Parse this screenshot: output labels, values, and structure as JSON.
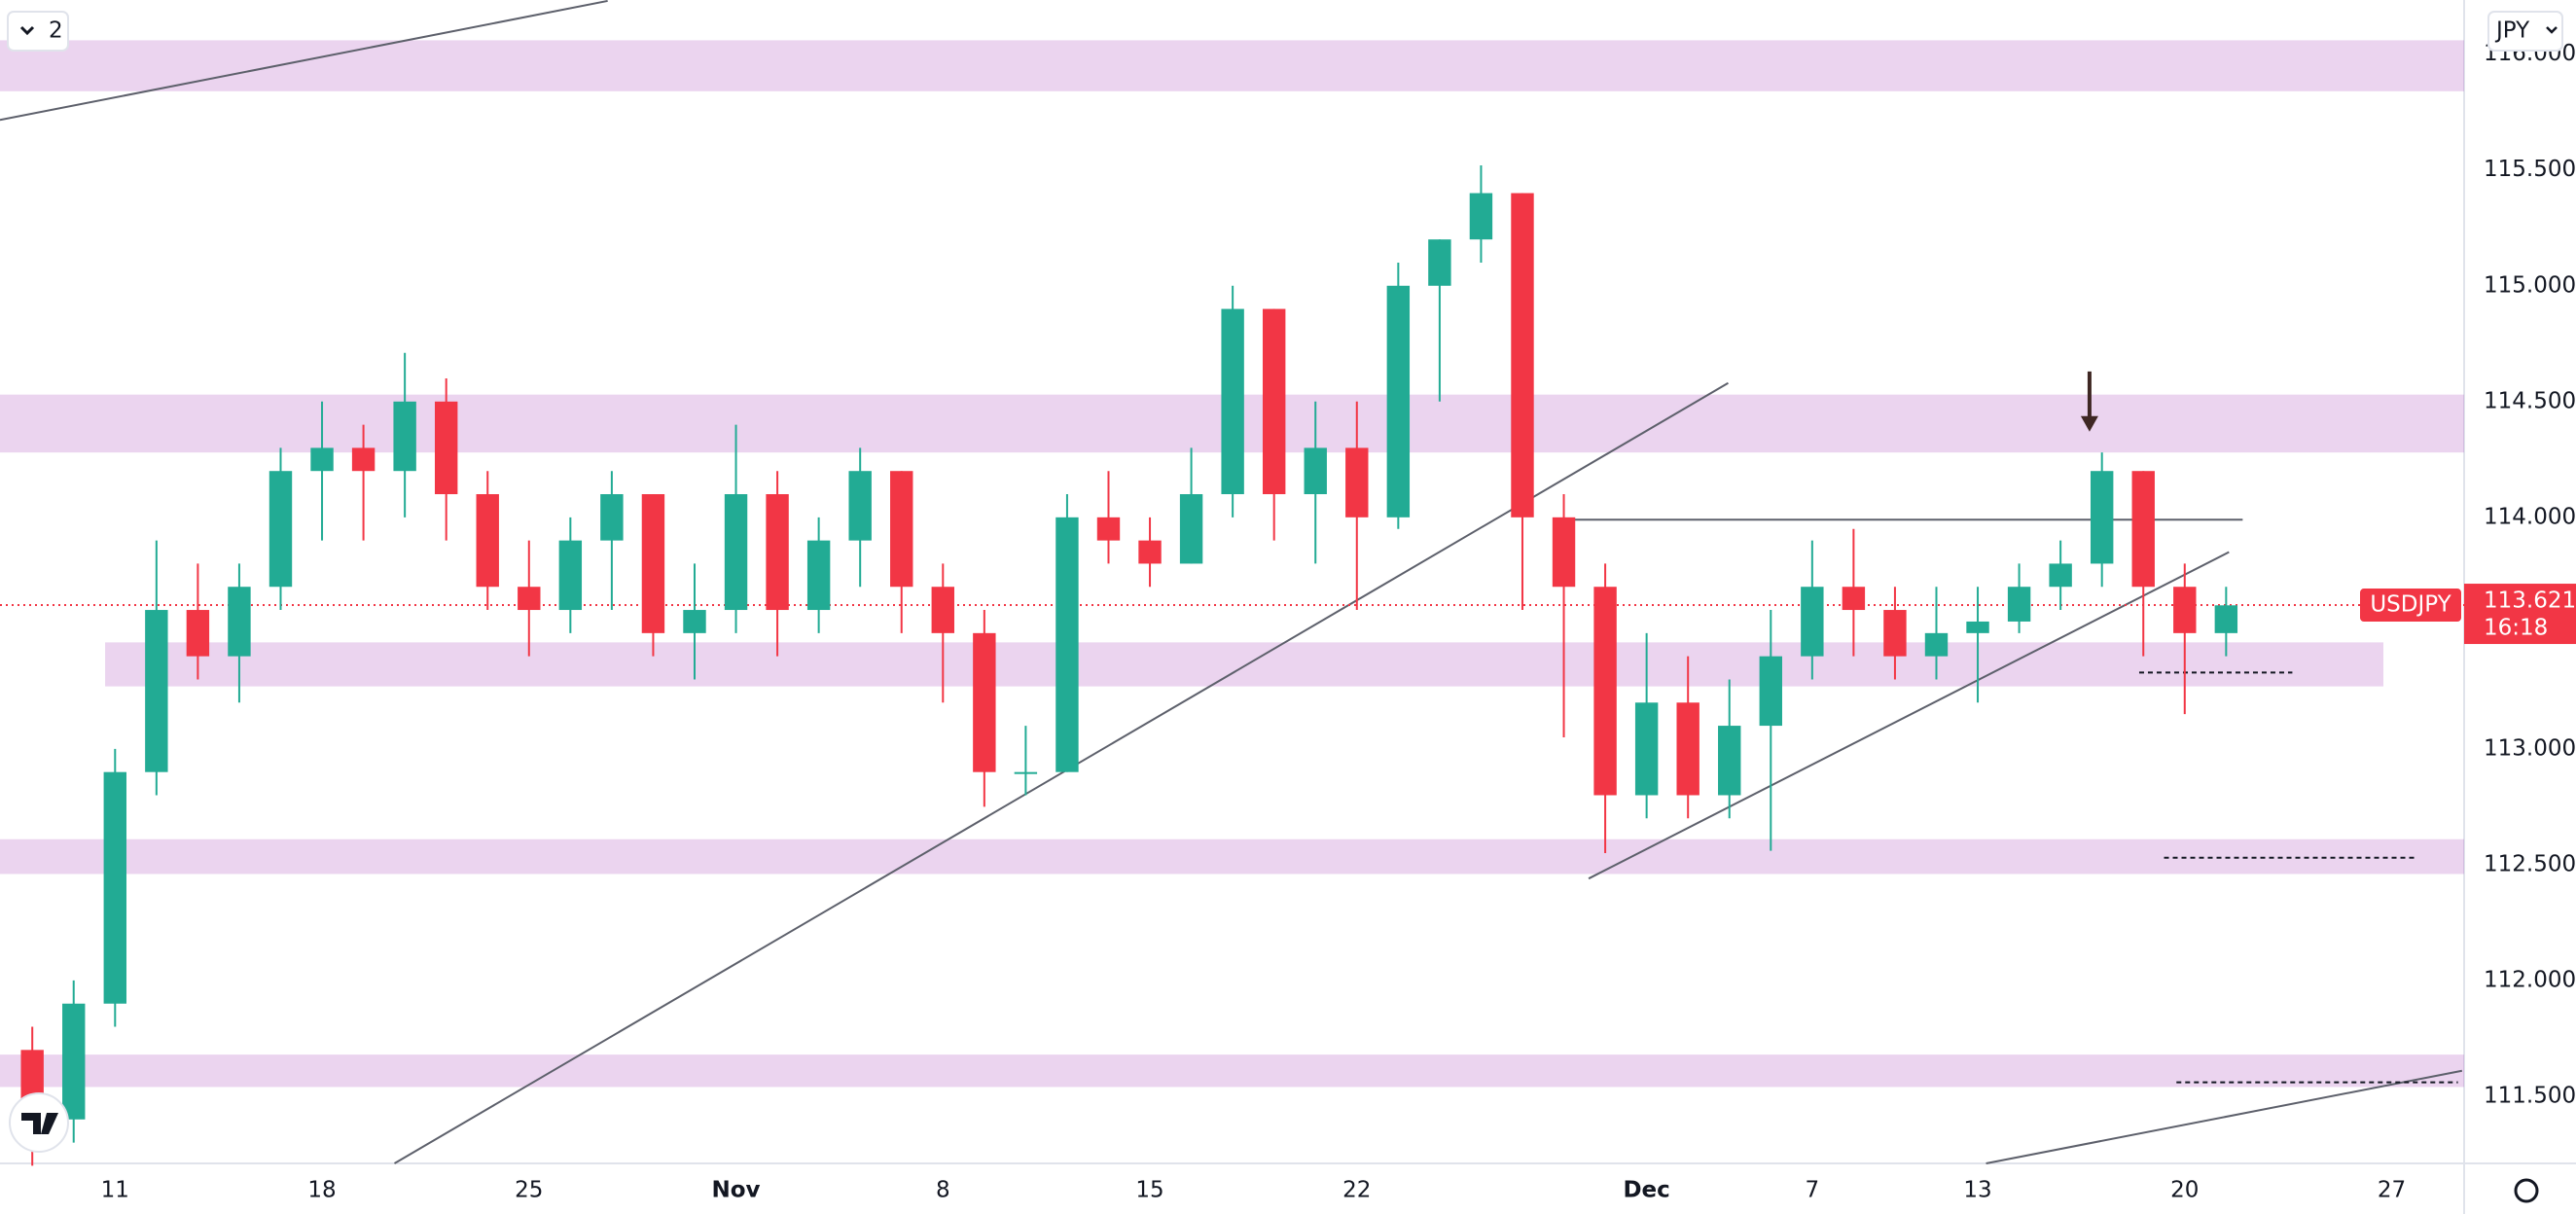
{
  "chart_data": {
    "type": "candlestick",
    "symbol": "USDJPY",
    "currency": "JPY",
    "pane_count": 2,
    "last_price": 113.621,
    "countdown": "16:18",
    "xlim": [
      -2.78,
      56.75
    ],
    "ylim": [
      111.21,
      116.234
    ],
    "xticks": [
      {
        "value": 0,
        "label": "11"
      },
      {
        "value": 5,
        "label": "18"
      },
      {
        "value": 10,
        "label": "25"
      },
      {
        "value": 15,
        "label": "Nov"
      },
      {
        "value": 20,
        "label": "8"
      },
      {
        "value": 25,
        "label": "15"
      },
      {
        "value": 30,
        "label": "22"
      },
      {
        "value": 37,
        "label": "Dec"
      },
      {
        "value": 41,
        "label": "7"
      },
      {
        "value": 45,
        "label": "13"
      },
      {
        "value": 50,
        "label": "20"
      },
      {
        "value": 55,
        "label": "27"
      }
    ],
    "yticks": [
      {
        "value": 111.5,
        "label": "111.500"
      },
      {
        "value": 112,
        "label": "112.000"
      },
      {
        "value": 112.5,
        "label": "112.500"
      },
      {
        "value": 113,
        "label": "113.000"
      },
      {
        "value": 113.5,
        "label": "113.500"
      },
      {
        "value": 114,
        "label": "114.000"
      },
      {
        "value": 114.5,
        "label": "114.500"
      },
      {
        "value": 115,
        "label": "115.000"
      },
      {
        "value": 115.5,
        "label": "115.500"
      },
      {
        "value": 116,
        "label": "116.000"
      }
    ],
    "grid": true,
    "up_color": "#22ab94",
    "down_color": "#f23645",
    "x": [
      -2,
      -1,
      0,
      1,
      2,
      3,
      4,
      5,
      6,
      7,
      8,
      9,
      10,
      11,
      12,
      13,
      14,
      15,
      16,
      17,
      18,
      19,
      20,
      21,
      22,
      23,
      24,
      25,
      26,
      27,
      28,
      29,
      30,
      31,
      32,
      33,
      34,
      35,
      36,
      37,
      38,
      39,
      40,
      41,
      42,
      43,
      44,
      45,
      46,
      47,
      48,
      49,
      50,
      51
    ],
    "open": [
      111.7,
      111.4,
      111.9,
      112.9,
      113.6,
      113.4,
      113.7,
      114.2,
      114.3,
      114.2,
      114.5,
      114.1,
      113.7,
      113.6,
      113.9,
      114.1,
      113.5,
      113.6,
      114.1,
      113.6,
      113.9,
      114.2,
      113.7,
      113.5,
      112.9,
      112.9,
      114.0,
      113.9,
      113.8,
      114.1,
      114.9,
      114.1,
      114.3,
      114.0,
      115.0,
      115.2,
      115.4,
      114.0,
      113.7,
      112.8,
      113.2,
      112.8,
      113.1,
      113.4,
      113.7,
      113.6,
      113.4,
      113.5,
      113.55,
      113.7,
      113.8,
      114.2,
      113.7,
      113.5
    ],
    "high": [
      111.8,
      112.0,
      113.0,
      113.9,
      113.8,
      113.8,
      114.3,
      114.5,
      114.4,
      114.71,
      114.6,
      114.2,
      113.9,
      114.0,
      114.2,
      114.1,
      113.8,
      114.4,
      114.2,
      114.0,
      114.3,
      114.2,
      113.8,
      113.6,
      113.1,
      114.1,
      114.2,
      114.0,
      114.3,
      115.0,
      114.9,
      114.5,
      114.5,
      115.1,
      115.2,
      115.52,
      115.4,
      114.1,
      113.8,
      113.5,
      113.4,
      113.3,
      113.6,
      113.9,
      113.95,
      113.7,
      113.7,
      113.7,
      113.8,
      113.9,
      114.28,
      114.2,
      113.8,
      113.7
    ],
    "low": [
      111.2,
      111.3,
      111.8,
      112.8,
      113.3,
      113.2,
      113.6,
      113.9,
      113.9,
      114.0,
      113.9,
      113.6,
      113.4,
      113.5,
      113.6,
      113.4,
      113.3,
      113.5,
      113.4,
      113.5,
      113.7,
      113.5,
      113.2,
      112.75,
      112.8,
      112.9,
      113.8,
      113.7,
      113.8,
      114.0,
      113.9,
      113.8,
      113.6,
      113.95,
      114.5,
      115.1,
      113.6,
      113.05,
      112.55,
      112.7,
      112.7,
      112.7,
      112.56,
      113.3,
      113.4,
      113.3,
      113.3,
      113.2,
      113.5,
      113.6,
      113.7,
      113.4,
      113.15,
      113.4
    ],
    "close": [
      111.4,
      111.9,
      112.9,
      113.6,
      113.4,
      113.7,
      114.2,
      114.3,
      114.2,
      114.5,
      114.1,
      113.7,
      113.6,
      113.9,
      114.1,
      113.5,
      113.6,
      114.1,
      113.6,
      113.9,
      114.2,
      113.7,
      113.5,
      112.9,
      112.9,
      114.0,
      113.9,
      113.8,
      114.1,
      114.9,
      114.1,
      114.3,
      114.0,
      115.0,
      115.2,
      115.4,
      114.0,
      113.7,
      112.8,
      113.2,
      112.8,
      113.1,
      113.4,
      113.7,
      113.6,
      113.4,
      113.5,
      113.55,
      113.7,
      113.8,
      114.2,
      113.7,
      113.5,
      113.62
    ],
    "zones": [
      {
        "x1": -2.78,
        "x2": 56.75,
        "y1": 115.84,
        "y2": 116.06
      },
      {
        "x1": -2.78,
        "x2": 56.75,
        "y1": 114.28,
        "y2": 114.53
      },
      {
        "x1": -0.24,
        "x2": 54.8,
        "y1": 113.27,
        "y2": 113.46
      },
      {
        "x1": -2.78,
        "x2": 56.75,
        "y1": 112.46,
        "y2": 112.61
      },
      {
        "x1": -2.78,
        "x2": 56.75,
        "y1": 111.54,
        "y2": 111.68
      }
    ],
    "trend_lines": [
      {
        "x1": -2.78,
        "y1": 115.716,
        "x2": 11.9,
        "y2": 116.23
      },
      {
        "x1": 6.75,
        "y1": 111.21,
        "x2": 38.97,
        "y2": 114.58
      },
      {
        "x1": 35.6,
        "y1": 112.44,
        "x2": 51.07,
        "y2": 113.85
      },
      {
        "x1": 35.2,
        "y1": 113.99,
        "x2": 51.4,
        "y2": 113.99
      },
      {
        "x1": 45.2,
        "y1": 111.21,
        "x2": 56.7,
        "y2": 111.61
      }
    ],
    "dashed_lines": [
      {
        "x1": 48.9,
        "x2": 52.6,
        "y": 113.33
      },
      {
        "x1": 49.5,
        "x2": 55.6,
        "y": 112.53
      },
      {
        "x1": 49.8,
        "x2": 56.6,
        "y": 111.56
      }
    ],
    "arrow": {
      "x": 47.7,
      "y1": 114.63,
      "y2": 114.37
    }
  }
}
